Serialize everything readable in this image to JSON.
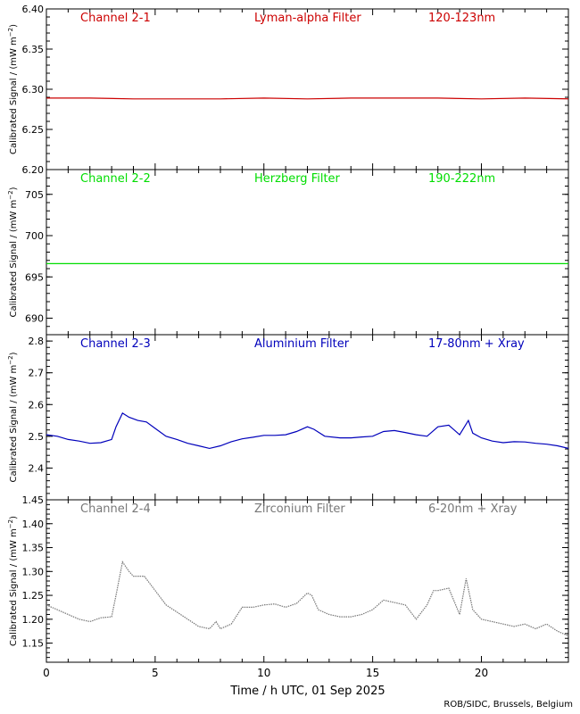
{
  "figure": {
    "xlabel": "Time / h UTC, 01 Sep 2025",
    "credit": "ROB/SIDC, Brussels, Belgium",
    "ylabel": "Calibrated Signal / (mW m",
    "ylabel_sup": "−2",
    "ylabel_close": ")"
  },
  "chart_data": [
    {
      "type": "line",
      "channel": "Channel 2-1",
      "filter": "Lyman-alpha Filter",
      "band": "120-123nm",
      "color": "#cc0000",
      "xlim": [
        0,
        24
      ],
      "ylim": [
        6.2,
        6.4
      ],
      "xticks": [
        0,
        5,
        10,
        15,
        20
      ],
      "yticks": [
        6.2,
        6.25,
        6.3,
        6.35,
        6.4
      ],
      "ytick_labels": [
        "6.20",
        "6.25",
        "6.30",
        "6.35",
        "6.40"
      ],
      "x": [
        0,
        2,
        4,
        6,
        8,
        10,
        12,
        14,
        16,
        18,
        20,
        22,
        24
      ],
      "y": [
        6.289,
        6.289,
        6.288,
        6.288,
        6.288,
        6.289,
        6.288,
        6.289,
        6.289,
        6.289,
        6.288,
        6.289,
        6.288
      ]
    },
    {
      "type": "line",
      "channel": "Channel 2-2",
      "filter": "Herzberg Filter",
      "band": "190-222nm",
      "color": "#00dd00",
      "xlim": [
        0,
        24
      ],
      "ylim": [
        688,
        708
      ],
      "xticks": [
        0,
        5,
        10,
        15,
        20
      ],
      "yticks": [
        690,
        695,
        700,
        705
      ],
      "ytick_labels": [
        "690",
        "695",
        "700",
        "705"
      ],
      "x": [
        0,
        4,
        8,
        12,
        16,
        20,
        24
      ],
      "y": [
        696.6,
        696.6,
        696.6,
        696.6,
        696.6,
        696.6,
        696.6
      ]
    },
    {
      "type": "line",
      "channel": "Channel 2-3",
      "filter": "Aluminium Filter",
      "band": "17-80nm + Xray",
      "color": "#0000bb",
      "xlim": [
        0,
        24
      ],
      "ylim": [
        2.3,
        2.82
      ],
      "xticks": [
        0,
        5,
        10,
        15,
        20
      ],
      "yticks": [
        2.4,
        2.5,
        2.6,
        2.7,
        2.8
      ],
      "ytick_labels": [
        "2.4",
        "2.5",
        "2.6",
        "2.7",
        "2.8"
      ],
      "x": [
        0,
        0.5,
        1.0,
        1.5,
        2.0,
        2.5,
        3.0,
        3.2,
        3.5,
        3.8,
        4.2,
        4.6,
        5.0,
        5.5,
        6.0,
        6.5,
        7.0,
        7.5,
        8.0,
        8.5,
        9.0,
        9.5,
        10.0,
        10.5,
        11.0,
        11.5,
        12.0,
        12.3,
        12.8,
        13.5,
        14.0,
        14.5,
        15.0,
        15.5,
        16.0,
        16.5,
        17.0,
        17.5,
        18.0,
        18.5,
        19.0,
        19.4,
        19.6,
        20.0,
        20.5,
        21.0,
        21.5,
        22.0,
        22.5,
        23.0,
        23.5,
        24.0
      ],
      "y": [
        2.505,
        2.5,
        2.49,
        2.485,
        2.478,
        2.48,
        2.49,
        2.53,
        2.573,
        2.56,
        2.55,
        2.545,
        2.525,
        2.5,
        2.49,
        2.478,
        2.47,
        2.462,
        2.47,
        2.483,
        2.492,
        2.497,
        2.503,
        2.503,
        2.505,
        2.515,
        2.53,
        2.522,
        2.5,
        2.495,
        2.495,
        2.498,
        2.5,
        2.515,
        2.518,
        2.512,
        2.505,
        2.5,
        2.53,
        2.535,
        2.505,
        2.55,
        2.51,
        2.495,
        2.485,
        2.48,
        2.483,
        2.482,
        2.478,
        2.475,
        2.47,
        2.462
      ]
    },
    {
      "type": "scatter",
      "channel": "Channel 2-4",
      "filter": "Zirconium Filter",
      "band": "6-20nm + Xray",
      "color": "#777777",
      "xlim": [
        0,
        24
      ],
      "ylim": [
        1.11,
        1.45
      ],
      "xticks": [
        0,
        5,
        10,
        15,
        20
      ],
      "yticks": [
        1.15,
        1.2,
        1.25,
        1.3,
        1.35,
        1.4,
        1.45
      ],
      "ytick_labels": [
        "1.15",
        "1.20",
        "1.25",
        "1.30",
        "1.35",
        "1.40",
        "1.45"
      ],
      "x": [
        0,
        0.5,
        1.0,
        1.5,
        2.0,
        2.5,
        3.0,
        3.2,
        3.5,
        3.8,
        4.0,
        4.5,
        5.0,
        5.5,
        6.0,
        6.5,
        7.0,
        7.5,
        7.8,
        8.0,
        8.5,
        9.0,
        9.5,
        10.0,
        10.5,
        11.0,
        11.5,
        12.0,
        12.2,
        12.5,
        13.0,
        13.5,
        14.0,
        14.5,
        15.0,
        15.5,
        16.0,
        16.5,
        17.0,
        17.5,
        17.8,
        18.0,
        18.5,
        19.0,
        19.3,
        19.6,
        20.0,
        20.5,
        21.0,
        21.5,
        22.0,
        22.5,
        23.0,
        23.5,
        24.0
      ],
      "y": [
        1.23,
        1.22,
        1.21,
        1.2,
        1.195,
        1.203,
        1.205,
        1.25,
        1.32,
        1.3,
        1.29,
        1.29,
        1.26,
        1.23,
        1.215,
        1.2,
        1.185,
        1.18,
        1.195,
        1.18,
        1.19,
        1.225,
        1.225,
        1.23,
        1.232,
        1.225,
        1.233,
        1.255,
        1.25,
        1.22,
        1.21,
        1.205,
        1.205,
        1.21,
        1.22,
        1.24,
        1.235,
        1.23,
        1.2,
        1.23,
        1.26,
        1.26,
        1.265,
        1.21,
        1.285,
        1.22,
        1.2,
        1.195,
        1.19,
        1.185,
        1.19,
        1.18,
        1.19,
        1.175,
        1.165
      ]
    }
  ]
}
